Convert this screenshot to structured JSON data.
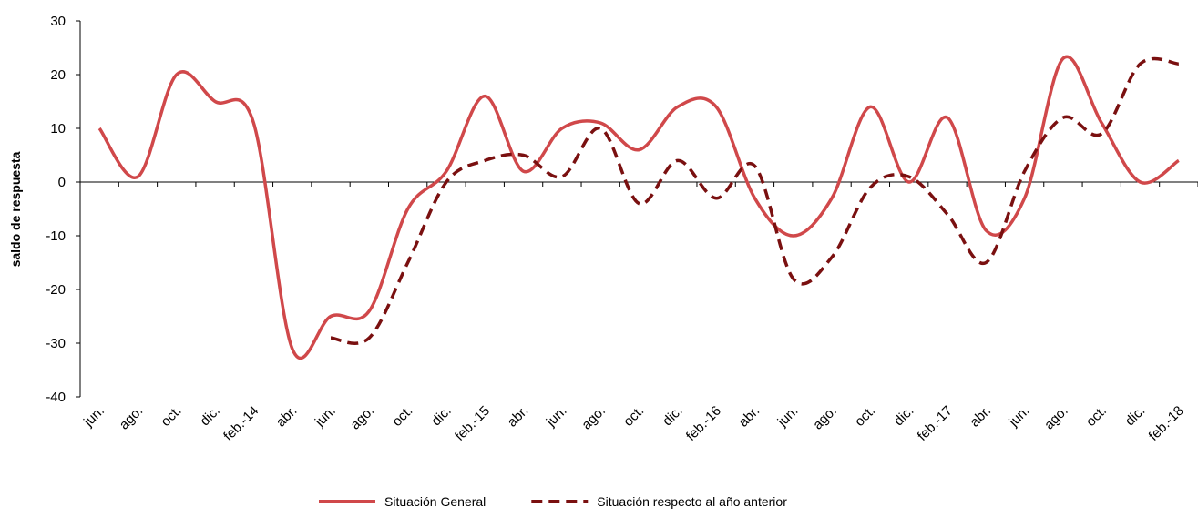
{
  "chart_data": {
    "type": "line",
    "y_label": "saldo de respuesta",
    "categories": [
      "jun.",
      "ago.",
      "oct.",
      "dic.",
      "feb.-14",
      "abr.",
      "jun.",
      "ago.",
      "oct.",
      "dic.",
      "feb.-15",
      "abr.",
      "jun.",
      "ago.",
      "oct.",
      "dic.",
      "feb.-16",
      "abr.",
      "jun.",
      "ago.",
      "oct.",
      "dic.",
      "feb.-17",
      "abr.",
      "jun.",
      "ago.",
      "oct.",
      "dic.",
      "feb.-18"
    ],
    "series": [
      {
        "name": "Situación General",
        "color": "#d0484a",
        "dashed": false,
        "values": [
          10,
          1,
          20,
          15,
          11,
          -31,
          -25,
          -24,
          -5,
          2,
          16,
          2,
          10,
          11,
          6,
          14,
          14,
          -3,
          -10,
          -3,
          14,
          0,
          12,
          -9,
          -3,
          23,
          11,
          0,
          4
        ]
      },
      {
        "name": "Situación respecto al año anterior",
        "color": "#7a1010",
        "dashed": true,
        "values": [
          null,
          null,
          null,
          null,
          null,
          null,
          -29,
          -29,
          -15,
          0,
          4,
          5,
          1,
          10,
          -4,
          4,
          -3,
          3,
          -18,
          -14,
          -1,
          1,
          -6,
          -15,
          2,
          12,
          9,
          22,
          22
        ]
      }
    ],
    "ylim": [
      -40,
      30
    ],
    "yticks": [
      -40,
      -30,
      -20,
      -10,
      0,
      10,
      20,
      30
    ],
    "grid": false
  }
}
